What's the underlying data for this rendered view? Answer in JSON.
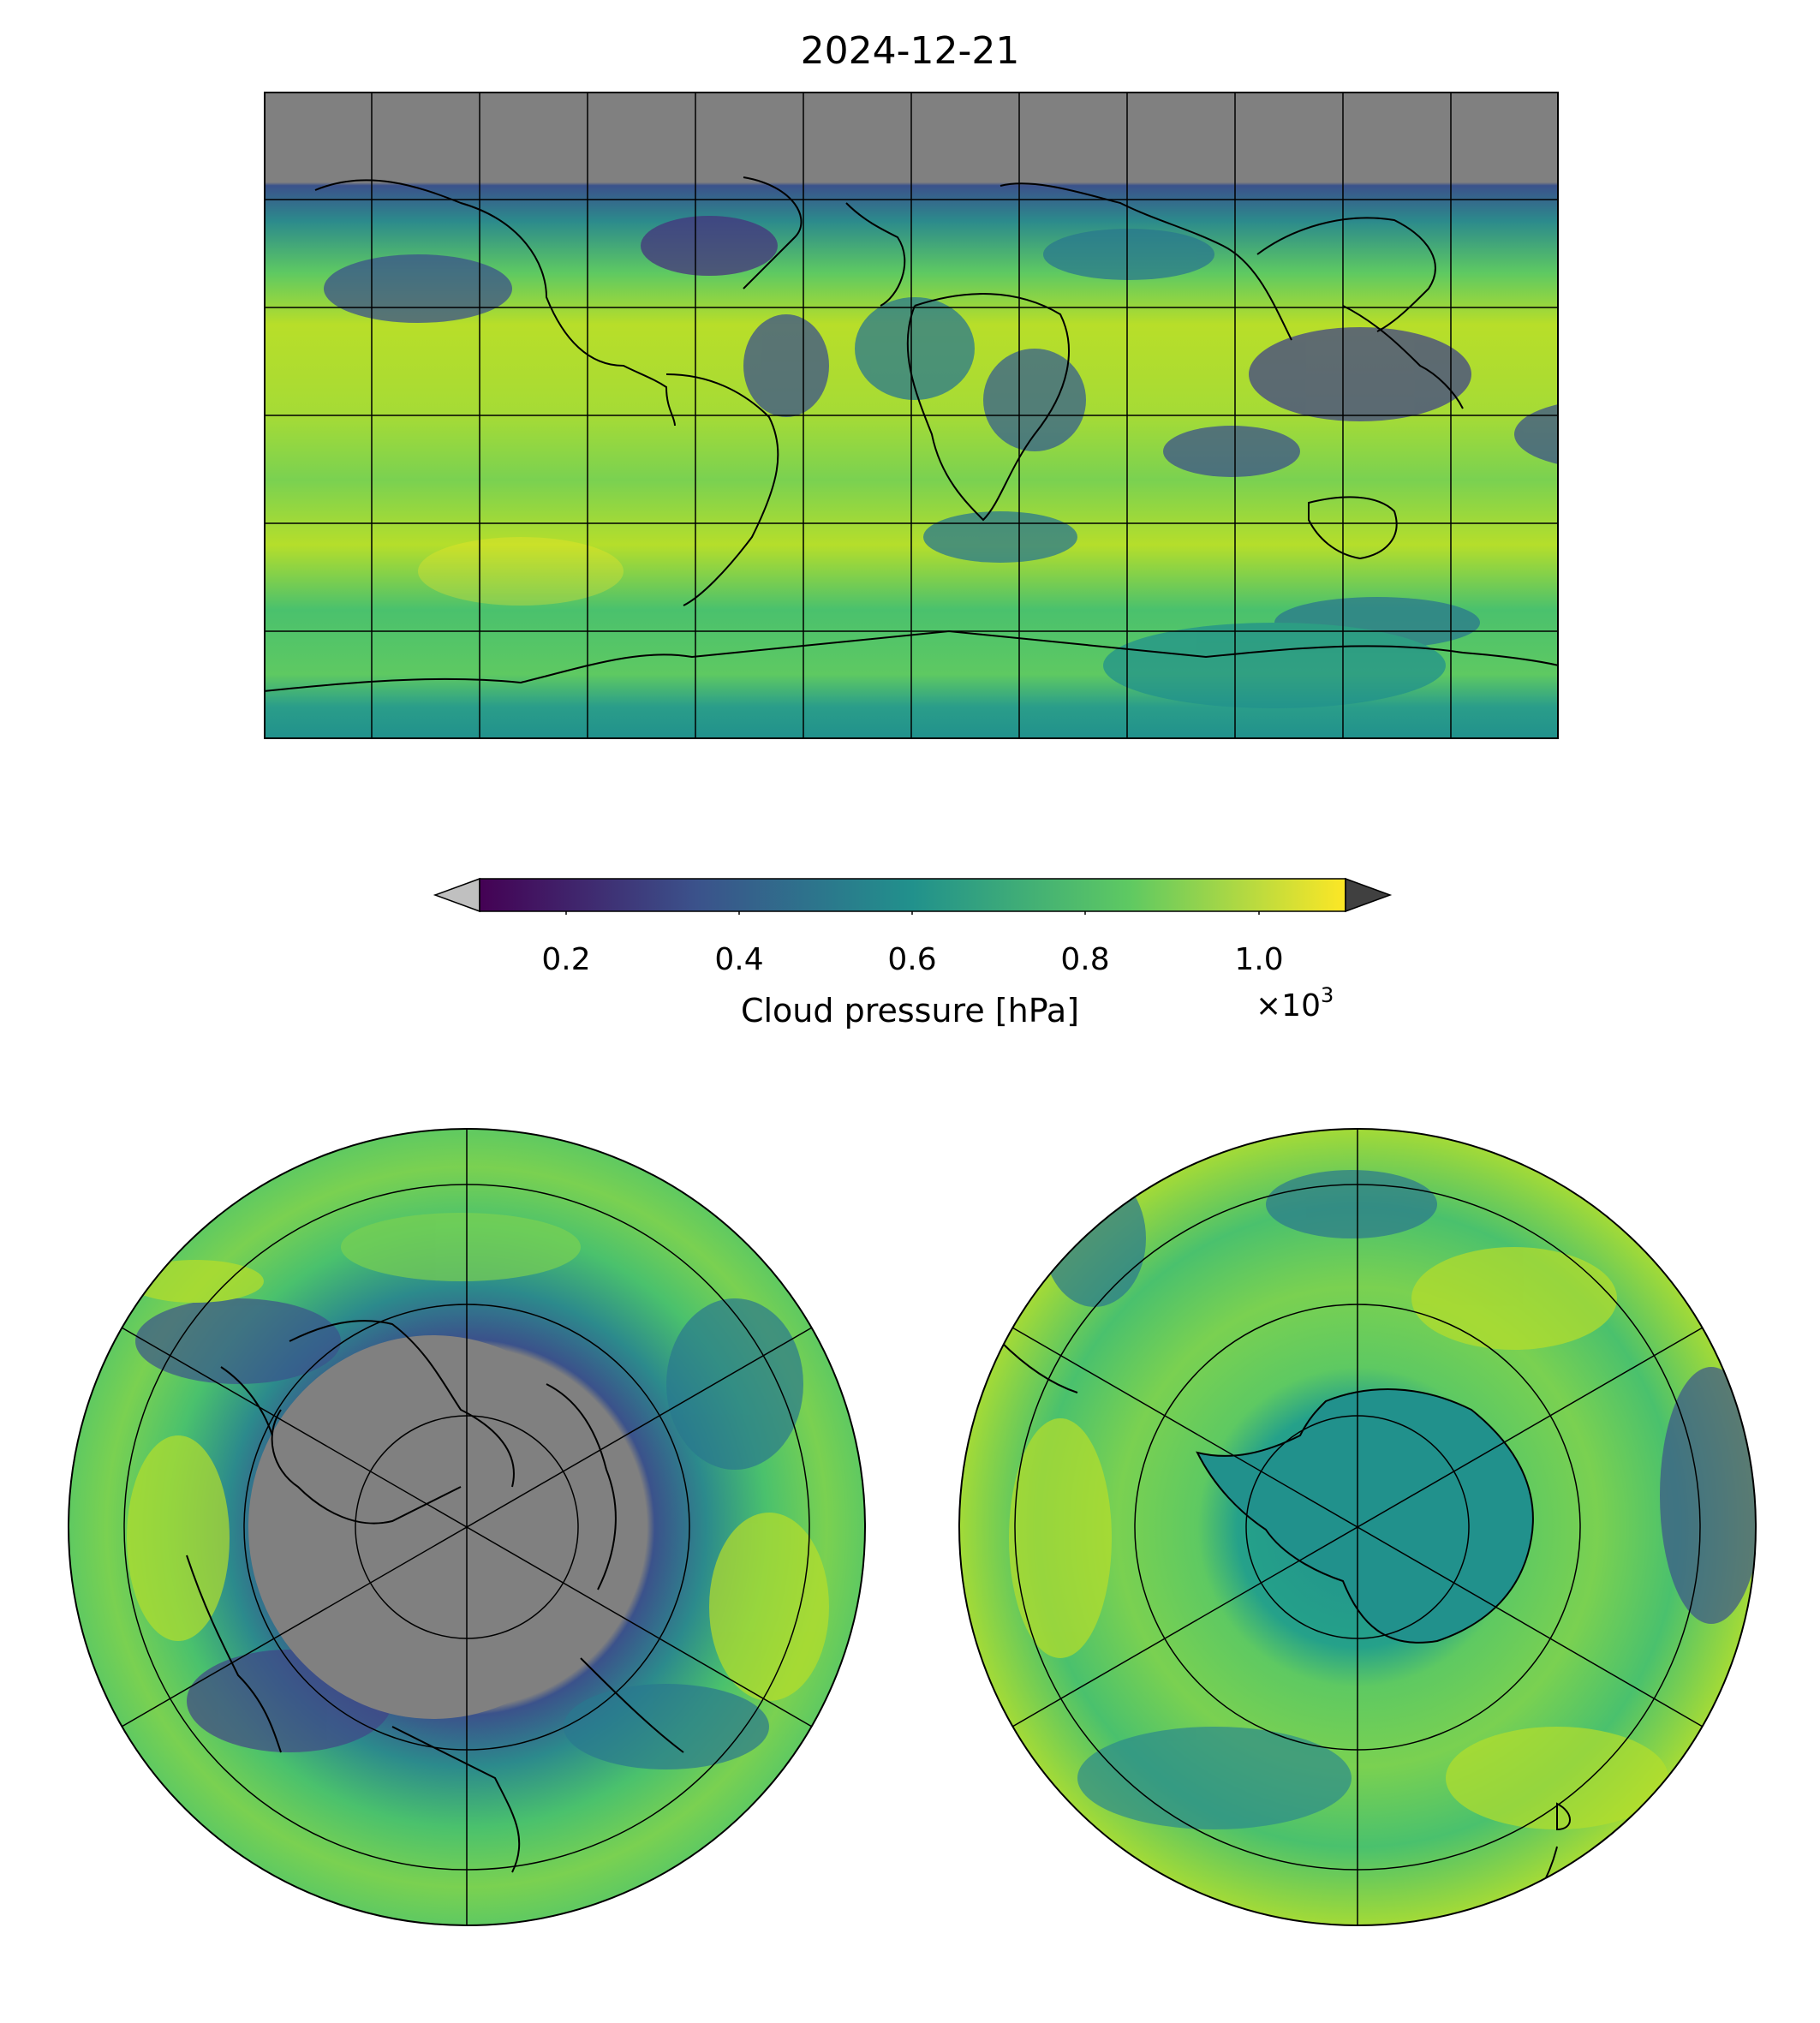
{
  "title": "2024-12-21",
  "colorbar": {
    "label": "Cloud pressure [hPa]",
    "multiplier_base": "×10",
    "multiplier_exp": "3",
    "ticks": [
      "0.2",
      "0.4",
      "0.6",
      "0.8",
      "1.0"
    ],
    "tick_values": [
      0.2,
      0.4,
      0.6,
      0.8,
      1.0
    ],
    "range": [
      0.1,
      1.1
    ],
    "extend": "both",
    "colormap": "viridis",
    "colormap_stops": [
      "#440154",
      "#3b528b",
      "#21918c",
      "#5ec962",
      "#fde725"
    ],
    "under_color": "#c0c0c0",
    "over_color": "#404040"
  },
  "maps": {
    "global": {
      "projection": "plate-carree",
      "missing_color": "#808080"
    },
    "north_polar": {
      "projection": "north-polar-stereographic",
      "missing_color": "#808080"
    },
    "south_polar": {
      "projection": "south-polar-stereographic"
    }
  }
}
